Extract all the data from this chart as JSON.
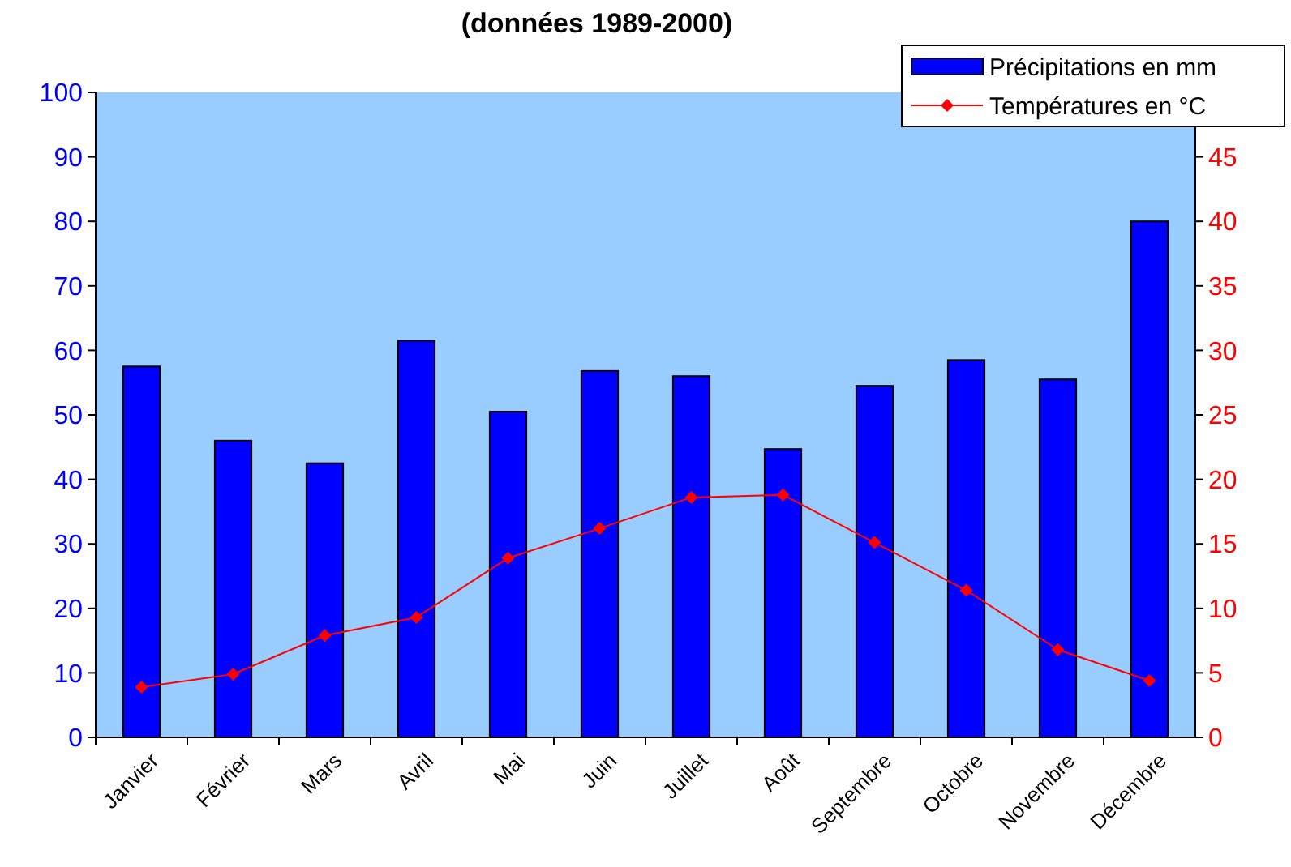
{
  "chart_data": {
    "type": "bar",
    "title": "(données 1989-2000)",
    "categories": [
      "Janvier",
      "Février",
      "Mars",
      "Avril",
      "Mai",
      "Juin",
      "Juillet",
      "Août",
      "Septembre",
      "Octobre",
      "Novembre",
      "Décembre"
    ],
    "series": [
      {
        "name": "Précipitations en mm",
        "color": "#0000ff",
        "values": [
          57.5,
          46,
          42.5,
          61.5,
          50.5,
          56.8,
          56,
          44.7,
          54.5,
          58.5,
          55.5,
          80
        ]
      },
      {
        "name": "Températures en °C",
        "type": "line",
        "axis": "y2",
        "color": "#ff0000",
        "marker": "diamond",
        "values": [
          3.9,
          4.9,
          7.9,
          9.3,
          13.9,
          16.2,
          18.6,
          18.8,
          15.1,
          11.4,
          6.8,
          4.4
        ]
      }
    ],
    "ylim": [
      0,
      100
    ],
    "yticks": [
      0,
      10,
      20,
      30,
      40,
      50,
      60,
      70,
      80,
      90,
      100
    ],
    "y2lim": [
      0,
      50
    ],
    "y2ticks": [
      0,
      5,
      10,
      15,
      20,
      25,
      30,
      35,
      40,
      45
    ],
    "grid": false,
    "legend": "top right"
  }
}
